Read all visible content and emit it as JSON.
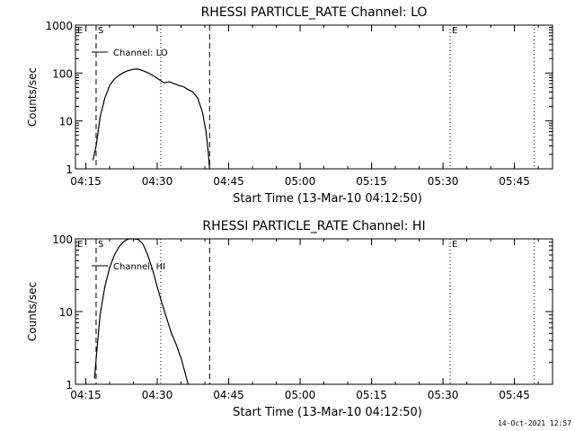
{
  "footer_timestamp": "14-Oct-2021 12:57",
  "chart_data": [
    {
      "type": "line",
      "title": "RHESSI PARTICLE_RATE Channel: LO",
      "xlabel": "Start Time (13-Mar-10 04:12:50)",
      "ylabel": "Counts/sec",
      "yscale": "log",
      "ylim": [
        1,
        1000
      ],
      "xlim": [
        "04:12:50",
        "05:53:00"
      ],
      "x_ticks": [
        "04:15",
        "04:30",
        "04:45",
        "05:00",
        "05:15",
        "05:30",
        "05:45"
      ],
      "y_ticks": [
        "1",
        "10",
        "100",
        "1000"
      ],
      "legend": "Channel: LO",
      "legend_position": "top-left",
      "markers": [
        {
          "label": "E",
          "time": "04:12:50",
          "style": "dotted"
        },
        {
          "label": "S",
          "time": "04:17:10",
          "style": "dashed"
        },
        {
          "label": "",
          "time": "04:30:45",
          "style": "dotted"
        },
        {
          "label": "",
          "time": "04:41:00",
          "style": "dashed"
        },
        {
          "label": "E",
          "time": "05:31:30",
          "style": "dotted"
        },
        {
          "label": "",
          "time": "05:49:10",
          "style": "dotted"
        }
      ],
      "series": [
        {
          "name": "Channel: LO",
          "x": [
            "04:16:30",
            "04:17:10",
            "04:18:00",
            "04:19:00",
            "04:20:00",
            "04:21:00",
            "04:22:00",
            "04:23:00",
            "04:24:00",
            "04:25:00",
            "04:26:00",
            "04:27:00",
            "04:28:00",
            "04:29:00",
            "04:30:00",
            "04:30:40",
            "04:31:30",
            "04:32:30",
            "04:33:30",
            "04:34:30",
            "04:35:30",
            "04:36:30",
            "04:37:30",
            "04:38:30",
            "04:39:30",
            "04:40:15",
            "04:40:40",
            "04:41:00"
          ],
          "y": [
            1.5,
            3,
            12,
            30,
            55,
            75,
            90,
            103,
            113,
            120,
            121,
            112,
            102,
            90,
            78,
            70,
            62,
            66,
            60,
            55,
            52,
            45,
            40,
            30,
            15,
            6,
            2.5,
            1
          ]
        }
      ]
    },
    {
      "type": "line",
      "title": "RHESSI PARTICLE_RATE Channel: HI",
      "xlabel": "Start Time (13-Mar-10 04:12:50)",
      "ylabel": "Counts/sec",
      "yscale": "log",
      "ylim": [
        1,
        100
      ],
      "xlim": [
        "04:12:50",
        "05:53:00"
      ],
      "x_ticks": [
        "04:15",
        "04:30",
        "04:45",
        "05:00",
        "05:15",
        "05:30",
        "05:45"
      ],
      "y_ticks": [
        "1",
        "10",
        "100"
      ],
      "legend": "Channel: HI",
      "legend_position": "top-left",
      "markers": [
        {
          "label": "E",
          "time": "04:12:50",
          "style": "dotted"
        },
        {
          "label": "S",
          "time": "04:17:10",
          "style": "dashed"
        },
        {
          "label": "",
          "time": "04:30:45",
          "style": "dotted"
        },
        {
          "label": "",
          "time": "04:41:00",
          "style": "dashed"
        },
        {
          "label": "E",
          "time": "05:31:30",
          "style": "dotted"
        },
        {
          "label": "",
          "time": "05:49:10",
          "style": "dotted"
        }
      ],
      "series": [
        {
          "name": "Channel: HI",
          "x": [
            "04:16:50",
            "04:17:20",
            "04:18:00",
            "04:19:00",
            "04:20:00",
            "04:21:00",
            "04:22:00",
            "04:23:00",
            "04:24:00",
            "04:25:00",
            "04:26:00",
            "04:27:00",
            "04:28:00",
            "04:29:00",
            "04:30:00",
            "04:31:00",
            "04:32:00",
            "04:33:00",
            "04:34:00",
            "04:35:00",
            "04:35:40",
            "04:36:10",
            "04:36:30"
          ],
          "y": [
            1.2,
            3,
            9,
            22,
            40,
            60,
            78,
            92,
            100,
            101,
            98,
            85,
            60,
            38,
            22,
            13,
            8,
            5,
            3.5,
            2.3,
            1.6,
            1.2,
            1
          ]
        }
      ]
    }
  ]
}
